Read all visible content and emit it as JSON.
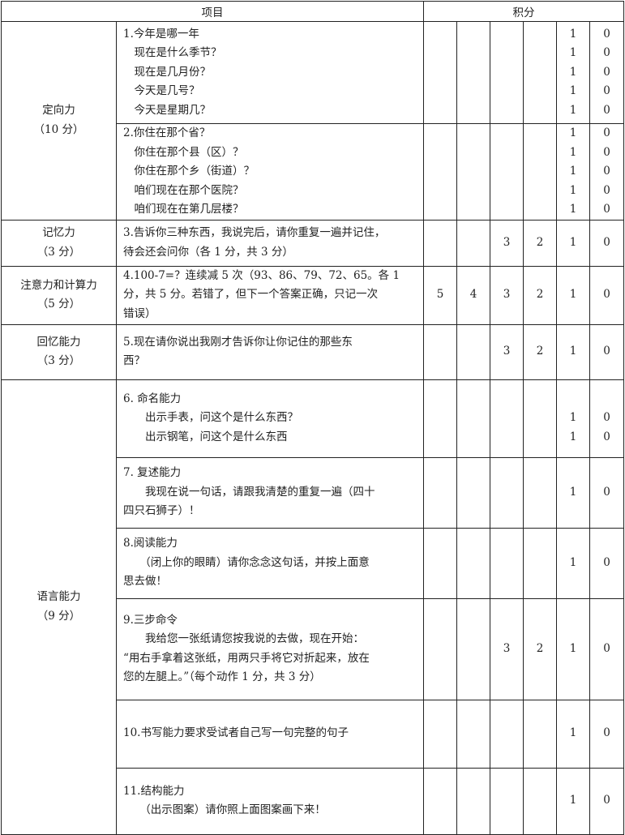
{
  "header": {
    "item": "项目",
    "score": "积分"
  },
  "rows": [
    {
      "category": [
        "定向力",
        "（10 分）"
      ],
      "catspan": 2,
      "h": 126,
      "lines": [
        "1.今年是哪一年",
        "　现在是什么季节？",
        "　现在是几月份？",
        "　今天是几号？",
        "　今天是星期几？"
      ],
      "scores": [
        [
          "",
          "",
          "",
          "",
          "",
          ""
        ],
        [
          "",
          "",
          "",
          "",
          "",
          ""
        ],
        [
          "",
          "",
          "",
          "",
          "",
          ""
        ],
        [
          "",
          "",
          "",
          "",
          "",
          ""
        ]
      ],
      "s5": [
        "1",
        "1",
        "1",
        "1",
        "1"
      ],
      "s6": [
        "0",
        "0",
        "0",
        "0",
        "0"
      ]
    },
    {
      "h": 117,
      "lines": [
        "2.你住在那个省？",
        "　你住在那个县（区）？",
        "　你住在那个乡（街道）？",
        "　咱们现在在那个医院？",
        "　咱们现在在第几层楼？"
      ],
      "s5": [
        "1",
        "1",
        "1",
        "1",
        "1"
      ],
      "s6": [
        "0",
        "0",
        "0",
        "0",
        "0"
      ]
    },
    {
      "category": [
        "记忆力",
        "（3 分）"
      ],
      "h": 57,
      "lines": [
        "3.告诉你三种东西，我说完后，请你重复一遍并记住，",
        "待会还会问你（各 1 分，共 3 分）"
      ],
      "s3": [
        "3"
      ],
      "s4": [
        "2"
      ],
      "s5": [
        "1"
      ],
      "s6": [
        "0"
      ]
    },
    {
      "category": [
        "注意力和计算力",
        "（5 分）"
      ],
      "h": 72,
      "lines": [
        "4.100-7=？连续减 5 次（93、86、79、72、65。各 1",
        "分，共 5 分。若错了，但下一个答案正确，只记一次",
        "错误）"
      ],
      "s1": [
        "5"
      ],
      "s2": [
        "4"
      ],
      "s3": [
        "3"
      ],
      "s4": [
        "2"
      ],
      "s5": [
        "1"
      ],
      "s6": [
        "0"
      ]
    },
    {
      "category": [
        "回忆能力",
        "（3 分）"
      ],
      "h": 68,
      "lines": [
        "5.现在请你说出我刚才告诉你让你记住的那些东",
        "西？"
      ],
      "s3": [
        "3"
      ],
      "s4": [
        "2"
      ],
      "s5": [
        "1"
      ],
      "s6": [
        "0"
      ]
    },
    {
      "category": [
        "语言能力",
        "（9 分）"
      ],
      "catspan": 6,
      "h": 96,
      "lines": [
        "6. 命名能力",
        "　　出示手表，问这个是什么东西？",
        "　　出示钢笔，问这个是什么东西"
      ],
      "s5": [
        "",
        "1",
        "1"
      ],
      "s6": [
        "",
        "0",
        "0"
      ]
    },
    {
      "h": 87,
      "lines": [
        "7. 复述能力",
        "　　我现在说一句话，请跟我清楚的重复一遍（四十",
        "四只石狮子）！"
      ],
      "s5": [
        "1"
      ],
      "s6": [
        "0"
      ]
    },
    {
      "h": 87,
      "lines": [
        "8.阅读能力",
        "　　（闭上你的眼睛）请你念念这句话，并按上面意",
        "思去做！"
      ],
      "s5": [
        "1"
      ],
      "s6": [
        "0"
      ]
    },
    {
      "h": 125,
      "lines": [
        "9.三步命令",
        "　　我给您一张纸请您按我说的去做，现在开始：",
        "“用右手拿着这张纸，用两只手将它对折起来，放在",
        "您的左腿上。”（每个动作 1 分，共 3 分）"
      ],
      "s3": [
        "3"
      ],
      "s4": [
        "2"
      ],
      "s5": [
        "1"
      ],
      "s6": [
        "0"
      ]
    },
    {
      "h": 84,
      "lines": [
        "10.书写能力要求受试者自己写一句完整的句子"
      ],
      "s5": [
        "1"
      ],
      "s6": [
        "0"
      ]
    },
    {
      "h": 82,
      "lines": [
        "11.结构能力",
        "　　（出示图案）请你照上面图案画下来！"
      ],
      "s5": [
        "1"
      ],
      "s6": [
        "0"
      ]
    }
  ]
}
